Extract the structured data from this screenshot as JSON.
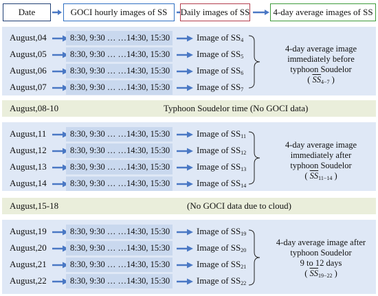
{
  "header": {
    "date": "Date",
    "hourly": "GOCI hourly images of SS",
    "daily": "Daily images of SS",
    "avg": "4-day average images of SS"
  },
  "colors": {
    "date_border": "#1f3f74",
    "hourly_border": "#2f6fc2",
    "daily_border": "#b23d4d",
    "avg_border": "#3d9a3a",
    "arrow": "#4a78c4",
    "panel": "#dfe8f6",
    "cell": "#c9d8ee",
    "separator": "#eaeedb"
  },
  "times": "8:30, 9:30 … …14:30, 15:30",
  "image_prefix": "Image of SS",
  "groups": [
    {
      "rows": [
        {
          "date": "August,04",
          "sub": "4"
        },
        {
          "date": "August,05",
          "sub": "5"
        },
        {
          "date": "August,06",
          "sub": "6"
        },
        {
          "date": "August,07",
          "sub": "7"
        }
      ],
      "note": [
        "4-day average  image",
        "immediately before",
        "typhoon Soudelor"
      ],
      "avg_sub": "4−7"
    },
    {
      "rows": [
        {
          "date": "August,11",
          "sub": "11"
        },
        {
          "date": "August,12",
          "sub": "12"
        },
        {
          "date": "August,13",
          "sub": "13"
        },
        {
          "date": "August,14",
          "sub": "14"
        }
      ],
      "note": [
        "4-day average  image",
        "immediately after",
        "typhoon Soudelor"
      ],
      "avg_sub": "11−14"
    },
    {
      "rows": [
        {
          "date": "August,19",
          "sub": "19"
        },
        {
          "date": "August,20",
          "sub": "20"
        },
        {
          "date": "August,21",
          "sub": "21"
        },
        {
          "date": "August,22",
          "sub": "22"
        }
      ],
      "note": [
        "4-day average  image after",
        "typhoon Soudelor",
        "9 to 12 days"
      ],
      "avg_sub": "19−22"
    }
  ],
  "separators": [
    {
      "date": "August,08-10",
      "text": "Typhoon Soudelor time (No GOCI data)"
    },
    {
      "date": "August,15-18",
      "text": "(No GOCI data due to cloud)"
    }
  ]
}
